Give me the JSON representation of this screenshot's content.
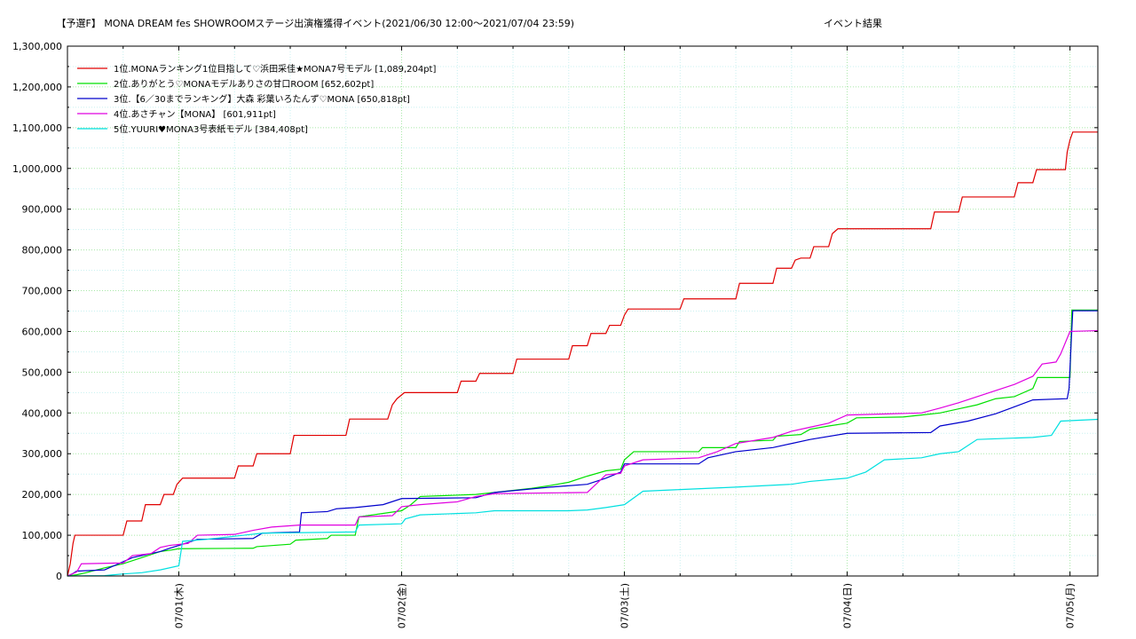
{
  "chart_data": {
    "type": "line",
    "title": "【予選F】 MONA DREAM fes SHOWROOMステージ出演権獲得イベント(2021/06/30 12:00〜2021/07/04 23:59)",
    "subtitle": "イベント結果",
    "xlabel": "",
    "ylabel": "",
    "x_unit": "hours since 2021/06/30 12:00",
    "xlim": [
      0,
      111
    ],
    "ylim": [
      0,
      1300000
    ],
    "y_ticks": [
      0,
      100000,
      200000,
      300000,
      400000,
      500000,
      600000,
      700000,
      800000,
      900000,
      1000000,
      1100000,
      1200000,
      1300000
    ],
    "y_tick_labels": [
      "0",
      "100,000",
      "200,000",
      "300,000",
      "400,000",
      "500,000",
      "600,000",
      "700,000",
      "800,000",
      "900,000",
      "1,000,000",
      "1,100,000",
      "1,200,000",
      "1,300,000"
    ],
    "x_ticks": [
      12,
      36,
      60,
      84,
      108
    ],
    "x_tick_labels": [
      "07/01(木)",
      "07/02(金)",
      "07/03(土)",
      "07/04(日)",
      "07/05(月)"
    ],
    "grid": true,
    "legend": "top-left",
    "series": [
      {
        "name": "1位.MONAランキング1位目指して♡浜田采佳★MONA7号モデル [1,089,204pt]",
        "color": "#e00000",
        "points": [
          [
            0,
            0
          ],
          [
            0.3,
            30000
          ],
          [
            0.6,
            80000
          ],
          [
            0.8,
            100000
          ],
          [
            6,
            100000
          ],
          [
            6.4,
            135000
          ],
          [
            8,
            135000
          ],
          [
            8.4,
            175000
          ],
          [
            10,
            175000
          ],
          [
            10.4,
            200000
          ],
          [
            11.4,
            200000
          ],
          [
            11.8,
            225000
          ],
          [
            12.4,
            240000
          ],
          [
            18,
            240000
          ],
          [
            18.4,
            270000
          ],
          [
            20,
            270000
          ],
          [
            20.4,
            300000
          ],
          [
            24,
            300000
          ],
          [
            24.4,
            345000
          ],
          [
            30,
            345000
          ],
          [
            30.4,
            385000
          ],
          [
            34.5,
            385000
          ],
          [
            35,
            420000
          ],
          [
            35.5,
            435000
          ],
          [
            36.3,
            450000
          ],
          [
            42,
            450000
          ],
          [
            42.4,
            478000
          ],
          [
            44,
            478000
          ],
          [
            44.4,
            497000
          ],
          [
            48,
            497000
          ],
          [
            48.4,
            532000
          ],
          [
            54,
            532000
          ],
          [
            54.4,
            565000
          ],
          [
            56,
            565000
          ],
          [
            56.4,
            595000
          ],
          [
            58,
            595000
          ],
          [
            58.4,
            615000
          ],
          [
            59.6,
            615000
          ],
          [
            60,
            640000
          ],
          [
            60.4,
            655000
          ],
          [
            66,
            655000
          ],
          [
            66.4,
            680000
          ],
          [
            72,
            680000
          ],
          [
            72.4,
            718000
          ],
          [
            76,
            718000
          ],
          [
            76.4,
            755000
          ],
          [
            78,
            755000
          ],
          [
            78.4,
            775000
          ],
          [
            79,
            780000
          ],
          [
            80,
            780000
          ],
          [
            80.4,
            808000
          ],
          [
            82,
            808000
          ],
          [
            82.4,
            840000
          ],
          [
            83,
            852000
          ],
          [
            93,
            852000
          ],
          [
            93.4,
            893000
          ],
          [
            96,
            893000
          ],
          [
            96.4,
            930000
          ],
          [
            102,
            930000
          ],
          [
            102.4,
            965000
          ],
          [
            104,
            965000
          ],
          [
            104.4,
            997000
          ],
          [
            107.5,
            997000
          ],
          [
            107.7,
            1040000
          ],
          [
            108,
            1070000
          ],
          [
            108.3,
            1089204
          ],
          [
            111,
            1089204
          ]
        ]
      },
      {
        "name": "2位.ありがとう♡MONAモデルありさの甘口ROOM [652,602pt]",
        "color": "#00e000",
        "points": [
          [
            0,
            0
          ],
          [
            1,
            3000
          ],
          [
            2,
            8000
          ],
          [
            4,
            20000
          ],
          [
            6,
            30000
          ],
          [
            8,
            45000
          ],
          [
            10,
            60000
          ],
          [
            11,
            63000
          ],
          [
            12,
            67000
          ],
          [
            20,
            68000
          ],
          [
            20.4,
            72000
          ],
          [
            24,
            78000
          ],
          [
            24.6,
            88000
          ],
          [
            28,
            92000
          ],
          [
            28.4,
            100000
          ],
          [
            31,
            100000
          ],
          [
            31.4,
            145000
          ],
          [
            36,
            160000
          ],
          [
            37,
            175000
          ],
          [
            38,
            195000
          ],
          [
            44,
            200000
          ],
          [
            46,
            205000
          ],
          [
            50,
            215000
          ],
          [
            52,
            222000
          ],
          [
            54,
            230000
          ],
          [
            56,
            245000
          ],
          [
            58,
            258000
          ],
          [
            59.6,
            262000
          ],
          [
            60,
            285000
          ],
          [
            61,
            305000
          ],
          [
            68,
            305000
          ],
          [
            68.4,
            315000
          ],
          [
            72,
            315000
          ],
          [
            72.4,
            330000
          ],
          [
            76,
            333000
          ],
          [
            76.4,
            343000
          ],
          [
            79,
            347000
          ],
          [
            80,
            360000
          ],
          [
            82,
            368000
          ],
          [
            84,
            375000
          ],
          [
            85,
            388000
          ],
          [
            90,
            390000
          ],
          [
            92,
            395000
          ],
          [
            94,
            400000
          ],
          [
            96,
            410000
          ],
          [
            98,
            420000
          ],
          [
            100,
            435000
          ],
          [
            102,
            440000
          ],
          [
            104,
            460000
          ],
          [
            104.5,
            487000
          ],
          [
            108,
            487000
          ],
          [
            108.2,
            652602
          ],
          [
            111,
            652602
          ]
        ]
      },
      {
        "name": "3位.【6／30までランキング】大森 彩葉いろたんず♡MONA [650,818pt]",
        "color": "#0000cc",
        "points": [
          [
            0,
            0
          ],
          [
            0.5,
            5000
          ],
          [
            1,
            12000
          ],
          [
            4,
            15000
          ],
          [
            5,
            25000
          ],
          [
            7,
            45000
          ],
          [
            10,
            60000
          ],
          [
            11,
            68000
          ],
          [
            12,
            75000
          ],
          [
            13,
            82000
          ],
          [
            14,
            90000
          ],
          [
            20,
            92000
          ],
          [
            21,
            105000
          ],
          [
            25,
            108000
          ],
          [
            25.2,
            155000
          ],
          [
            28,
            158000
          ],
          [
            29,
            165000
          ],
          [
            31,
            168000
          ],
          [
            34,
            175000
          ],
          [
            36,
            190000
          ],
          [
            44,
            192000
          ],
          [
            46,
            205000
          ],
          [
            52,
            218000
          ],
          [
            56,
            225000
          ],
          [
            58,
            240000
          ],
          [
            59.6,
            255000
          ],
          [
            60,
            275000
          ],
          [
            62,
            275000
          ],
          [
            68,
            275000
          ],
          [
            69,
            290000
          ],
          [
            72,
            305000
          ],
          [
            76,
            315000
          ],
          [
            78,
            325000
          ],
          [
            80,
            335000
          ],
          [
            84,
            350000
          ],
          [
            93,
            352000
          ],
          [
            94,
            368000
          ],
          [
            97,
            380000
          ],
          [
            100,
            398000
          ],
          [
            102,
            415000
          ],
          [
            104,
            432000
          ],
          [
            107.7,
            435000
          ],
          [
            107.9,
            460000
          ],
          [
            108.1,
            560000
          ],
          [
            108.3,
            650818
          ],
          [
            111,
            650818
          ]
        ]
      },
      {
        "name": "4位.あさチャン【MONA】 [601,911pt]",
        "color": "#e000e0",
        "points": [
          [
            0,
            0
          ],
          [
            1,
            10000
          ],
          [
            1.5,
            30000
          ],
          [
            6,
            32000
          ],
          [
            7,
            50000
          ],
          [
            9,
            55000
          ],
          [
            10,
            70000
          ],
          [
            11,
            75000
          ],
          [
            13,
            80000
          ],
          [
            14,
            100000
          ],
          [
            18,
            102000
          ],
          [
            20,
            112000
          ],
          [
            22,
            120000
          ],
          [
            25,
            125000
          ],
          [
            31,
            125000
          ],
          [
            31.4,
            145000
          ],
          [
            35,
            148000
          ],
          [
            36,
            170000
          ],
          [
            38,
            175000
          ],
          [
            42,
            182000
          ],
          [
            44,
            195000
          ],
          [
            46,
            202000
          ],
          [
            56,
            205000
          ],
          [
            58,
            248000
          ],
          [
            59.6,
            252000
          ],
          [
            60,
            270000
          ],
          [
            62,
            285000
          ],
          [
            68,
            290000
          ],
          [
            70,
            305000
          ],
          [
            72,
            325000
          ],
          [
            76,
            340000
          ],
          [
            78,
            355000
          ],
          [
            80,
            365000
          ],
          [
            82,
            375000
          ],
          [
            84,
            395000
          ],
          [
            92,
            400000
          ],
          [
            94,
            412000
          ],
          [
            96,
            425000
          ],
          [
            98,
            440000
          ],
          [
            100,
            455000
          ],
          [
            102,
            470000
          ],
          [
            104,
            490000
          ],
          [
            105,
            520000
          ],
          [
            106.5,
            525000
          ],
          [
            107,
            545000
          ],
          [
            108,
            600000
          ],
          [
            111,
            601911
          ]
        ]
      },
      {
        "name": "5位.YUURI♥MONA3号表紙モデル [384,408pt]",
        "color": "#00e0e0",
        "points": [
          [
            0,
            0
          ],
          [
            4,
            1000
          ],
          [
            6,
            5000
          ],
          [
            8,
            8000
          ],
          [
            10,
            15000
          ],
          [
            12,
            25000
          ],
          [
            12.4,
            85000
          ],
          [
            15,
            90000
          ],
          [
            19,
            100000
          ],
          [
            21,
            105000
          ],
          [
            31,
            108000
          ],
          [
            31.4,
            125000
          ],
          [
            36,
            128000
          ],
          [
            36.4,
            140000
          ],
          [
            38,
            150000
          ],
          [
            44,
            155000
          ],
          [
            46,
            160000
          ],
          [
            54,
            160000
          ],
          [
            56,
            162000
          ],
          [
            58,
            168000
          ],
          [
            60,
            175000
          ],
          [
            62,
            208000
          ],
          [
            66,
            212000
          ],
          [
            72,
            218000
          ],
          [
            78,
            225000
          ],
          [
            80,
            232000
          ],
          [
            84,
            240000
          ],
          [
            86,
            255000
          ],
          [
            88,
            285000
          ],
          [
            92,
            290000
          ],
          [
            94,
            300000
          ],
          [
            96,
            305000
          ],
          [
            98,
            335000
          ],
          [
            104,
            340000
          ],
          [
            106,
            345000
          ],
          [
            107,
            380000
          ],
          [
            111,
            384408
          ]
        ]
      }
    ]
  }
}
